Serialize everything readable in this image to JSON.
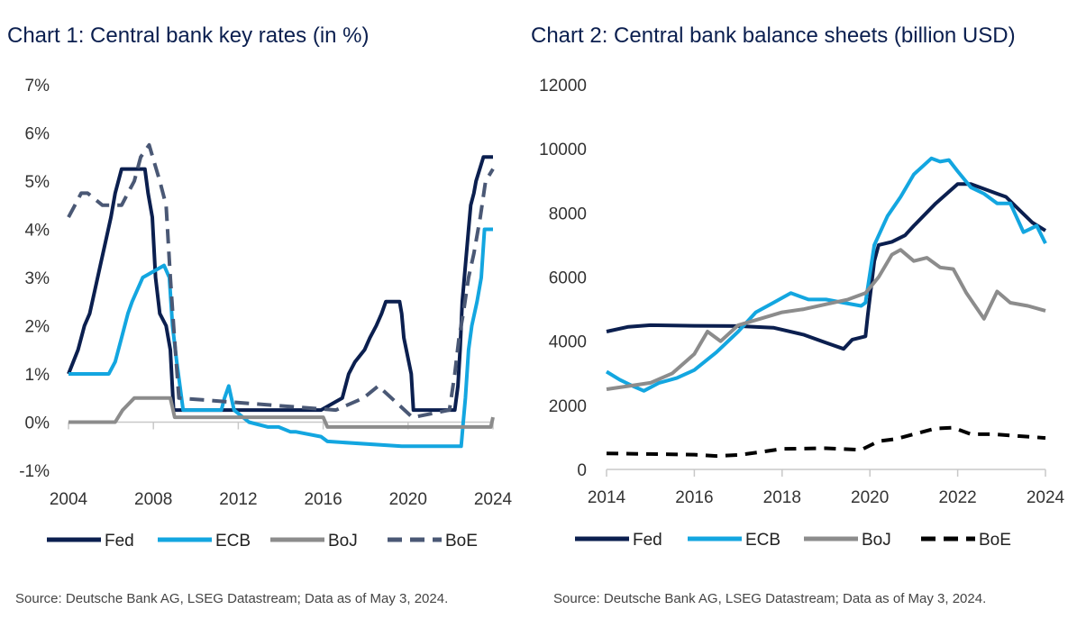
{
  "chart_data": [
    {
      "type": "line",
      "title": "Chart 1: Central bank key rates (in %)",
      "xlabel": "",
      "ylabel": "",
      "xlim": [
        2004,
        2024
      ],
      "ylim": [
        -1,
        7
      ],
      "xticks": [
        2004,
        2008,
        2012,
        2016,
        2020,
        2024
      ],
      "xtick_labels": [
        "2004",
        "2008",
        "2012",
        "2016",
        "2020",
        "2024"
      ],
      "yticks": [
        -1,
        0,
        1,
        2,
        3,
        4,
        5,
        6,
        7
      ],
      "ytick_labels": [
        "-1%",
        "0%",
        "1%",
        "2%",
        "3%",
        "4%",
        "5%",
        "6%",
        "7%"
      ],
      "grid": false,
      "legend": "bottom",
      "series": [
        {
          "name": "Fed",
          "color": "#0b1f4f",
          "dashed": false,
          "x": [
            2004.0,
            2004.45,
            2004.75,
            2005.0,
            2005.25,
            2005.5,
            2005.75,
            2006.0,
            2006.2,
            2006.5,
            2007.6,
            2007.75,
            2007.95,
            2008.1,
            2008.3,
            2008.6,
            2008.8,
            2008.95,
            2015.9,
            2016.9,
            2017.2,
            2017.5,
            2017.95,
            2018.2,
            2018.5,
            2018.75,
            2018.95,
            2019.6,
            2019.7,
            2019.8,
            2020.15,
            2020.25,
            2022.2,
            2022.35,
            2022.45,
            2022.55,
            2022.7,
            2022.85,
            2022.95,
            2023.1,
            2023.2,
            2023.55,
            2024.0
          ],
          "y": [
            1.0,
            1.5,
            2.0,
            2.25,
            2.75,
            3.25,
            3.75,
            4.25,
            4.75,
            5.25,
            5.25,
            4.75,
            4.25,
            3.0,
            2.25,
            2.0,
            1.5,
            0.25,
            0.25,
            0.5,
            1.0,
            1.25,
            1.5,
            1.75,
            2.0,
            2.25,
            2.5,
            2.5,
            2.25,
            1.75,
            1.0,
            0.25,
            0.25,
            0.75,
            1.5,
            2.5,
            3.25,
            4.0,
            4.5,
            4.75,
            5.0,
            5.5,
            5.5
          ]
        },
        {
          "name": "ECB",
          "color": "#13a6e0",
          "dashed": false,
          "x": [
            2004.0,
            2005.9,
            2006.2,
            2006.5,
            2006.8,
            2007.0,
            2007.5,
            2008.5,
            2008.75,
            2008.9,
            2009.1,
            2009.4,
            2011.2,
            2011.35,
            2011.55,
            2011.8,
            2012.5,
            2013.4,
            2013.9,
            2014.45,
            2014.7,
            2015.9,
            2016.2,
            2019.7,
            2022.5,
            2022.6,
            2022.7,
            2022.85,
            2023.0,
            2023.25,
            2023.45,
            2023.6,
            2024.0
          ],
          "y": [
            1.0,
            1.0,
            1.25,
            1.75,
            2.25,
            2.5,
            3.0,
            3.25,
            3.0,
            2.0,
            1.25,
            0.25,
            0.25,
            0.5,
            0.75,
            0.25,
            0.0,
            -0.1,
            -0.1,
            -0.2,
            -0.2,
            -0.3,
            -0.4,
            -0.5,
            -0.5,
            0.0,
            0.5,
            1.5,
            2.0,
            2.5,
            3.0,
            4.0,
            4.0
          ]
        },
        {
          "name": "BoJ",
          "color": "#8c8c8c",
          "dashed": false,
          "x": [
            2004.0,
            2006.2,
            2006.55,
            2007.1,
            2008.8,
            2009.0,
            2016.0,
            2016.2,
            2023.9,
            2024.0
          ],
          "y": [
            0.0,
            0.0,
            0.25,
            0.5,
            0.5,
            0.1,
            0.1,
            -0.1,
            -0.1,
            0.1
          ]
        },
        {
          "name": "BoE",
          "color": "#4a5875",
          "dashed": true,
          "x": [
            2004.0,
            2004.3,
            2004.6,
            2004.9,
            2005.6,
            2006.5,
            2006.8,
            2007.1,
            2007.4,
            2007.8,
            2008.3,
            2008.6,
            2008.8,
            2008.95,
            2009.2,
            2016.6,
            2017.9,
            2018.6,
            2020.2,
            2020.25,
            2021.95,
            2022.2,
            2022.4,
            2022.6,
            2022.85,
            2023.1,
            2023.4,
            2023.65,
            2024.0
          ],
          "y": [
            4.25,
            4.5,
            4.75,
            4.75,
            4.5,
            4.5,
            4.75,
            5.0,
            5.5,
            5.75,
            5.0,
            4.5,
            3.0,
            2.0,
            0.5,
            0.25,
            0.5,
            0.75,
            0.1,
            0.1,
            0.25,
            1.0,
            1.75,
            2.25,
            3.0,
            3.5,
            4.25,
            5.0,
            5.25
          ]
        }
      ]
    },
    {
      "type": "line",
      "title": "Chart 2: Central bank balance sheets (billion USD)",
      "xlabel": "",
      "ylabel": "",
      "xlim": [
        2014,
        2024
      ],
      "ylim": [
        0,
        12000
      ],
      "xticks": [
        2014,
        2016,
        2018,
        2020,
        2022,
        2024
      ],
      "xtick_labels": [
        "2014",
        "2016",
        "2018",
        "2020",
        "2022",
        "2024"
      ],
      "yticks": [
        0,
        2000,
        4000,
        6000,
        8000,
        10000,
        12000
      ],
      "ytick_labels": [
        "0",
        "2000",
        "4000",
        "6000",
        "8000",
        "10000",
        "12000"
      ],
      "grid": false,
      "legend": "bottom",
      "series": [
        {
          "name": "Fed",
          "color": "#0b1f4f",
          "dashed": false,
          "x": [
            2014.0,
            2014.5,
            2015.0,
            2016.0,
            2017.0,
            2017.8,
            2018.5,
            2019.0,
            2019.4,
            2019.6,
            2019.9,
            2019.95,
            2020.1,
            2020.2,
            2020.5,
            2020.8,
            2021.0,
            2021.5,
            2022.0,
            2022.3,
            2022.6,
            2022.9,
            2023.1,
            2023.4,
            2023.7,
            2024.0
          ],
          "y": [
            4300,
            4450,
            4500,
            4480,
            4470,
            4420,
            4200,
            3950,
            3760,
            4050,
            4150,
            4800,
            6500,
            7000,
            7100,
            7300,
            7600,
            8300,
            8900,
            8900,
            8750,
            8600,
            8500,
            8100,
            7700,
            7450
          ]
        },
        {
          "name": "ECB",
          "color": "#13a6e0",
          "dashed": false,
          "x": [
            2014.0,
            2014.3,
            2014.6,
            2014.85,
            2015.2,
            2015.6,
            2016.0,
            2016.5,
            2017.0,
            2017.4,
            2017.8,
            2018.2,
            2018.6,
            2019.0,
            2019.4,
            2019.8,
            2019.9,
            2020.1,
            2020.4,
            2020.7,
            2021.0,
            2021.4,
            2021.6,
            2021.8,
            2022.0,
            2022.3,
            2022.6,
            2022.9,
            2023.2,
            2023.5,
            2023.8,
            2024.0
          ],
          "y": [
            3050,
            2800,
            2600,
            2450,
            2700,
            2850,
            3100,
            3650,
            4300,
            4900,
            5200,
            5500,
            5300,
            5300,
            5200,
            5100,
            5200,
            7000,
            7900,
            8500,
            9200,
            9700,
            9600,
            9650,
            9300,
            8800,
            8600,
            8300,
            8300,
            7400,
            7600,
            7050
          ]
        },
        {
          "name": "BoJ",
          "color": "#8c8c8c",
          "dashed": false,
          "x": [
            2014.0,
            2014.5,
            2015.0,
            2015.5,
            2016.0,
            2016.3,
            2016.6,
            2017.0,
            2017.5,
            2018.0,
            2018.5,
            2019.0,
            2019.5,
            2019.9,
            2020.2,
            2020.5,
            2020.7,
            2021.0,
            2021.3,
            2021.6,
            2021.9,
            2022.2,
            2022.6,
            2022.9,
            2023.2,
            2023.6,
            2024.0
          ],
          "y": [
            2500,
            2600,
            2700,
            3000,
            3600,
            4300,
            4000,
            4500,
            4700,
            4900,
            5000,
            5150,
            5300,
            5500,
            6000,
            6700,
            6850,
            6500,
            6600,
            6300,
            6250,
            5500,
            4700,
            5550,
            5200,
            5100,
            4950
          ]
        },
        {
          "name": "BoE",
          "color": "#000000",
          "dashed": true,
          "x": [
            2014.0,
            2015.0,
            2016.0,
            2016.5,
            2017.0,
            2017.5,
            2018.0,
            2019.0,
            2019.8,
            2020.2,
            2020.6,
            2021.0,
            2021.5,
            2021.9,
            2022.3,
            2022.8,
            2023.3,
            2024.0
          ],
          "y": [
            500,
            480,
            460,
            420,
            450,
            540,
            640,
            660,
            610,
            880,
            950,
            1100,
            1280,
            1300,
            1100,
            1100,
            1050,
            980
          ]
        }
      ]
    }
  ],
  "sources": [
    "Source: Deutsche Bank AG, LSEG Datastream; Data as of May 3, 2024.",
    "Source: Deutsche Bank AG, LSEG Datastream; Data as of May 3, 2024."
  ]
}
